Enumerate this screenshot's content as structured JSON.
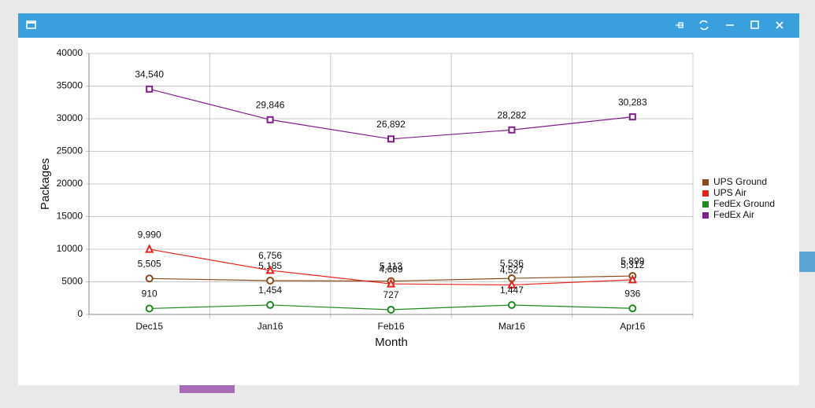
{
  "chart_data": {
    "type": "line",
    "x_label": "Month",
    "y_label": "Packages",
    "categories": [
      "Dec15",
      "Jan16",
      "Feb16",
      "Mar16",
      "Apr16"
    ],
    "series": [
      {
        "name": "UPS Ground",
        "color": "#8b4a1c",
        "marker": "circle",
        "values": [
          5505,
          5185,
          5113,
          5536,
          5899
        ],
        "value_labels": [
          "5,505",
          "5,185",
          "5,113",
          "5,536",
          "5,899"
        ]
      },
      {
        "name": "UPS Air",
        "color": "#e8231a",
        "marker": "triangle",
        "values": [
          9990,
          6756,
          4689,
          4527,
          5312
        ],
        "value_labels": [
          "9,990",
          "6,756",
          "4,689",
          "4,527",
          "5,312"
        ]
      },
      {
        "name": "FedEx Ground",
        "color": "#1f8a1f",
        "marker": "circle",
        "values": [
          910,
          1454,
          727,
          1447,
          936
        ],
        "value_labels": [
          "910",
          "1,454",
          "727",
          "1,447",
          "936"
        ]
      },
      {
        "name": "FedEx Air",
        "color": "#7f1f8a",
        "marker": "square",
        "values": [
          34540,
          29846,
          26892,
          28282,
          30283
        ],
        "value_labels": [
          "34,540",
          "29,846",
          "26,892",
          "28,282",
          "30,283"
        ]
      }
    ],
    "ylim": [
      0,
      40000
    ],
    "yticks": [
      0,
      5000,
      10000,
      15000,
      20000,
      25000,
      30000,
      35000,
      40000
    ],
    "grid": true,
    "legend": "right"
  }
}
